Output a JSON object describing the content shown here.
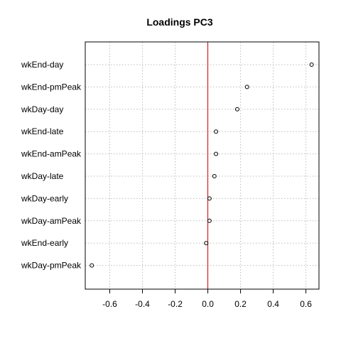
{
  "chart_data": {
    "type": "scatter",
    "title": "Loadings PC3",
    "xlabel": "",
    "ylabel": "",
    "categories": [
      "wkEnd-day",
      "wkEnd-pmPeak",
      "wkDay-day",
      "wkEnd-late",
      "wkEnd-amPeak",
      "wkDay-late",
      "wkDay-early",
      "wkDay-amPeak",
      "wkEnd-early",
      "wkDay-pmPeak"
    ],
    "values": [
      0.635,
      0.24,
      0.18,
      0.05,
      0.05,
      0.04,
      0.01,
      0.01,
      -0.01,
      -0.71
    ],
    "xlim": [
      -0.75,
      0.68
    ],
    "xticks": [
      -0.6,
      -0.4,
      -0.2,
      0.0,
      0.2,
      0.4,
      0.6
    ],
    "xtick_labels": [
      "-0.6",
      "-0.4",
      "-0.2",
      "0.0",
      "0.2",
      "0.4",
      "0.6"
    ],
    "reference_line": 0,
    "reference_color": "#cc0000",
    "grid": true
  }
}
